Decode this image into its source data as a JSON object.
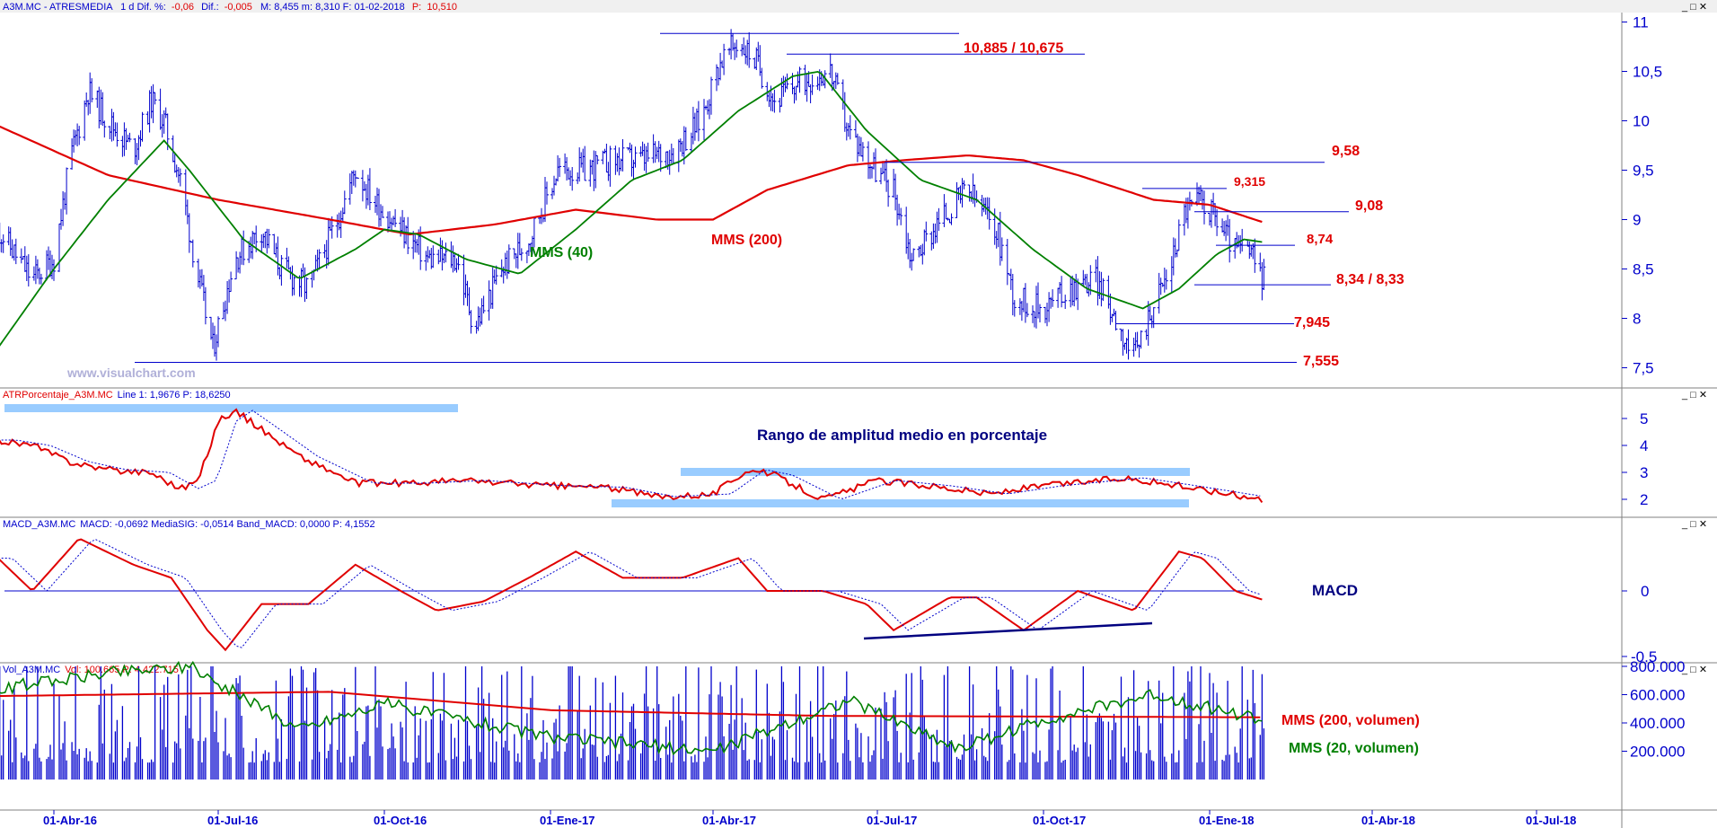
{
  "panes": {
    "price": {
      "header_symbol": "A3M.MC - ATRESMEDIA",
      "header_rest": "1 d  Dif. %:",
      "header_pct": "-0,06",
      "header_dif_label": "Dif.:",
      "header_dif": "-0,005",
      "header_stats": "M: 8,455  m: 8,310  F: 01-02-2018",
      "header_p_label": "P:",
      "header_p": "10,510",
      "watermark": "www.visualchart.com"
    },
    "atr": {
      "header_name": "ATRPorcentaje_A3M.MC",
      "header_vals": "Line 1: 1,9676  P: 18,6250",
      "note": "Rango de amplitud medio en porcentaje"
    },
    "macd": {
      "header_name": "MACD_A3M.MC",
      "header_vals": "MACD: -0,0692  MediaSIG: -0,0514  Band_MACD: 0,0000  P: 4,1552",
      "note": "MACD"
    },
    "volume": {
      "header_name": "Vol_A3M.MC",
      "header_vals": "Vol: 100.665  P: 4.422.715"
    }
  },
  "colors": {
    "price_bars": "#0000cc",
    "mms40": "#008000",
    "mms200": "#e00000",
    "atr": "#e00000",
    "macd_line": "#e00000",
    "signal": "#0000cc",
    "highlight": "#99ccff",
    "axis": "#0000cc",
    "accent_text": "#e00000",
    "dark_text": "#000080"
  },
  "chart_data": [
    {
      "type": "line",
      "pane": "price",
      "x_ticks": [
        "01-Abr-16",
        "01-Jul-16",
        "01-Oct-16",
        "01-Ene-17",
        "01-Abr-17",
        "01-Jul-17",
        "01-Oct-17",
        "01-Ene-18",
        "01-Abr-18",
        "01-Jul-18"
      ],
      "y_ticks": [
        "11",
        "10,5",
        "10",
        "9,5",
        "9",
        "8,5",
        "8",
        "7,5"
      ],
      "ylim": [
        7.3,
        11.1
      ],
      "x_start": "2016-03-01",
      "x_end": "2018-01-31",
      "close_series": [
        [
          "2016-03-01",
          8.9
        ],
        [
          "2016-03-20",
          8.4
        ],
        [
          "2016-04-01",
          8.6
        ],
        [
          "2016-04-10",
          9.6
        ],
        [
          "2016-04-20",
          10.3
        ],
        [
          "2016-05-01",
          10.0
        ],
        [
          "2016-05-15",
          9.7
        ],
        [
          "2016-05-25",
          10.2
        ],
        [
          "2016-06-01",
          10.0
        ],
        [
          "2016-06-10",
          9.4
        ],
        [
          "2016-06-20",
          8.4
        ],
        [
          "2016-06-28",
          7.7
        ],
        [
          "2016-07-10",
          8.6
        ],
        [
          "2016-07-25",
          8.9
        ],
        [
          "2016-08-05",
          8.5
        ],
        [
          "2016-08-20",
          8.3
        ],
        [
          "2016-09-05",
          9.0
        ],
        [
          "2016-09-15",
          9.5
        ],
        [
          "2016-09-25",
          9.2
        ],
        [
          "2016-10-10",
          8.9
        ],
        [
          "2016-10-25",
          8.6
        ],
        [
          "2016-11-10",
          8.6
        ],
        [
          "2016-11-20",
          7.9
        ],
        [
          "2016-12-05",
          8.5
        ],
        [
          "2016-12-20",
          8.8
        ],
        [
          "2017-01-05",
          9.5
        ],
        [
          "2017-01-20",
          9.5
        ],
        [
          "2017-02-05",
          9.6
        ],
        [
          "2017-02-20",
          9.6
        ],
        [
          "2017-03-10",
          9.7
        ],
        [
          "2017-03-25",
          10.0
        ],
        [
          "2017-04-05",
          10.6
        ],
        [
          "2017-04-15",
          10.8
        ],
        [
          "2017-04-25",
          10.6
        ],
        [
          "2017-05-05",
          10.2
        ],
        [
          "2017-05-20",
          10.4
        ],
        [
          "2017-06-05",
          10.5
        ],
        [
          "2017-06-15",
          9.9
        ],
        [
          "2017-06-30",
          9.5
        ],
        [
          "2017-07-10",
          9.3
        ],
        [
          "2017-07-20",
          8.6
        ],
        [
          "2017-08-05",
          9.0
        ],
        [
          "2017-08-20",
          9.3
        ],
        [
          "2017-09-05",
          8.9
        ],
        [
          "2017-09-15",
          8.2
        ],
        [
          "2017-09-30",
          8.1
        ],
        [
          "2017-10-15",
          8.3
        ],
        [
          "2017-10-30",
          8.4
        ],
        [
          "2017-11-10",
          8.0
        ],
        [
          "2017-11-20",
          7.6
        ],
        [
          "2017-11-30",
          8.1
        ],
        [
          "2017-12-10",
          8.5
        ],
        [
          "2017-12-18",
          9.1
        ],
        [
          "2017-12-28",
          9.2
        ],
        [
          "2018-01-05",
          9.0
        ],
        [
          "2018-01-15",
          8.7
        ],
        [
          "2018-01-22",
          8.7
        ],
        [
          "2018-01-31",
          8.4
        ]
      ],
      "series": [
        {
          "name": "MMS (40)",
          "values": [
            [
              "2016-03-01",
              7.7
            ],
            [
              "2016-04-01",
              8.5
            ],
            [
              "2016-05-01",
              9.2
            ],
            [
              "2016-06-01",
              9.8
            ],
            [
              "2016-06-15",
              9.5
            ],
            [
              "2016-07-15",
              8.8
            ],
            [
              "2016-08-15",
              8.4
            ],
            [
              "2016-09-15",
              8.7
            ],
            [
              "2016-10-01",
              8.9
            ],
            [
              "2016-10-20",
              8.85
            ],
            [
              "2016-11-15",
              8.6
            ],
            [
              "2016-12-15",
              8.45
            ],
            [
              "2017-01-15",
              8.9
            ],
            [
              "2017-02-15",
              9.4
            ],
            [
              "2017-03-15",
              9.6
            ],
            [
              "2017-04-15",
              10.1
            ],
            [
              "2017-05-15",
              10.45
            ],
            [
              "2017-05-30",
              10.5
            ],
            [
              "2017-06-25",
              9.9
            ],
            [
              "2017-07-25",
              9.4
            ],
            [
              "2017-08-25",
              9.2
            ],
            [
              "2017-09-25",
              8.7
            ],
            [
              "2017-10-25",
              8.3
            ],
            [
              "2017-11-25",
              8.1
            ],
            [
              "2017-12-15",
              8.3
            ],
            [
              "2018-01-05",
              8.65
            ],
            [
              "2018-01-20",
              8.8
            ],
            [
              "2018-01-31",
              8.77
            ]
          ]
        },
        {
          "name": "MMS (200)",
          "values": [
            [
              "2016-03-01",
              9.95
            ],
            [
              "2016-05-01",
              9.45
            ],
            [
              "2016-07-01",
              9.2
            ],
            [
              "2016-09-01",
              9.0
            ],
            [
              "2016-10-15",
              8.85
            ],
            [
              "2016-12-01",
              8.95
            ],
            [
              "2017-01-15",
              9.1
            ],
            [
              "2017-03-01",
              9.0
            ],
            [
              "2017-04-01",
              9.0
            ],
            [
              "2017-05-01",
              9.3
            ],
            [
              "2017-06-15",
              9.55
            ],
            [
              "2017-07-15",
              9.6
            ],
            [
              "2017-08-20",
              9.65
            ],
            [
              "2017-09-20",
              9.6
            ],
            [
              "2017-10-20",
              9.45
            ],
            [
              "2017-12-01",
              9.2
            ],
            [
              "2018-01-01",
              9.15
            ],
            [
              "2018-01-31",
              8.97
            ]
          ]
        }
      ],
      "levels": [
        {
          "label": "10,885 / 10,675",
          "value": 10.885,
          "value2": 10.675
        },
        {
          "label": "9,58",
          "value": 9.58
        },
        {
          "label": "9,315",
          "value": 9.315
        },
        {
          "label": "9,08",
          "value": 9.08
        },
        {
          "label": "8,74",
          "value": 8.74
        },
        {
          "label": "8,34 / 8,33",
          "value": 8.34
        },
        {
          "label": "7,945",
          "value": 7.945
        },
        {
          "label": "7,555",
          "value": 7.555
        }
      ],
      "annotations": [
        "MMS (40)",
        "MMS (200)"
      ]
    },
    {
      "type": "line",
      "pane": "atr",
      "y_ticks": [
        "5",
        "4",
        "3",
        "2"
      ],
      "ylim": [
        1.5,
        5.5
      ],
      "series": [
        {
          "name": "ATR %",
          "values": [
            [
              "2016-03-01",
              4.2
            ],
            [
              "2016-03-20",
              4.0
            ],
            [
              "2016-04-10",
              3.4
            ],
            [
              "2016-05-01",
              3.1
            ],
            [
              "2016-05-25",
              3.0
            ],
            [
              "2016-06-10",
              2.4
            ],
            [
              "2016-06-20",
              2.7
            ],
            [
              "2016-07-01",
              4.9
            ],
            [
              "2016-07-10",
              5.3
            ],
            [
              "2016-07-25",
              4.6
            ],
            [
              "2016-08-15",
              3.6
            ],
            [
              "2016-09-15",
              2.6
            ],
            [
              "2016-10-15",
              2.6
            ],
            [
              "2016-11-15",
              2.7
            ],
            [
              "2017-01-01",
              2.5
            ],
            [
              "2017-02-01",
              2.45
            ],
            [
              "2017-03-01",
              2.1
            ],
            [
              "2017-04-01",
              2.2
            ],
            [
              "2017-04-20",
              3.1
            ],
            [
              "2017-05-05",
              2.9
            ],
            [
              "2017-06-01",
              2.0
            ],
            [
              "2017-07-01",
              2.7
            ],
            [
              "2017-08-01",
              2.5
            ],
            [
              "2017-09-01",
              2.2
            ],
            [
              "2017-10-01",
              2.5
            ],
            [
              "2017-11-15",
              2.8
            ],
            [
              "2017-12-15",
              2.5
            ],
            [
              "2018-01-31",
              2.0
            ]
          ]
        }
      ],
      "annotations": [
        "Rango de amplitud medio en porcentaje"
      ]
    },
    {
      "type": "line",
      "pane": "macd",
      "y_ticks": [
        "0",
        "-0.5"
      ],
      "ylim": [
        -0.55,
        0.45
      ],
      "series": [
        {
          "name": "MACD",
          "values": [
            [
              "2016-03-01",
              0.25
            ],
            [
              "2016-03-20",
              0.0
            ],
            [
              "2016-04-15",
              0.4
            ],
            [
              "2016-05-15",
              0.2
            ],
            [
              "2016-06-05",
              0.1
            ],
            [
              "2016-06-25",
              -0.3
            ],
            [
              "2016-07-05",
              -0.45
            ],
            [
              "2016-07-25",
              -0.1
            ],
            [
              "2016-08-20",
              -0.1
            ],
            [
              "2016-09-15",
              0.2
            ],
            [
              "2016-10-10",
              0.0
            ],
            [
              "2016-10-30",
              -0.15
            ],
            [
              "2016-11-25",
              -0.08
            ],
            [
              "2016-12-20",
              0.1
            ],
            [
              "2017-01-15",
              0.3
            ],
            [
              "2017-02-10",
              0.1
            ],
            [
              "2017-03-15",
              0.1
            ],
            [
              "2017-04-15",
              0.25
            ],
            [
              "2017-05-01",
              0.0
            ],
            [
              "2017-06-01",
              0.0
            ],
            [
              "2017-06-25",
              -0.1
            ],
            [
              "2017-07-10",
              -0.3
            ],
            [
              "2017-08-10",
              -0.05
            ],
            [
              "2017-08-25",
              -0.05
            ],
            [
              "2017-09-20",
              -0.3
            ],
            [
              "2017-10-20",
              0.0
            ],
            [
              "2017-11-20",
              -0.15
            ],
            [
              "2017-12-15",
              0.3
            ],
            [
              "2017-12-28",
              0.25
            ],
            [
              "2018-01-15",
              0.0
            ],
            [
              "2018-01-31",
              -0.07
            ]
          ]
        }
      ],
      "annotations": [
        "MACD"
      ]
    },
    {
      "type": "bar",
      "pane": "volume",
      "y_ticks": [
        "800.000",
        "600.000",
        "400.000",
        "200.000"
      ],
      "ylim": [
        0,
        820000
      ],
      "series": [
        {
          "name": "MMS (200, volumen)",
          "values": [
            [
              "2016-03-01",
              590000
            ],
            [
              "2016-09-01",
              620000
            ],
            [
              "2017-01-01",
              490000
            ],
            [
              "2017-06-01",
              450000
            ],
            [
              "2018-01-31",
              440000
            ]
          ]
        },
        {
          "name": "MMS (20, volumen)",
          "values": [
            [
              "2016-03-01",
              640000
            ],
            [
              "2016-05-01",
              760000
            ],
            [
              "2016-06-15",
              800000
            ],
            [
              "2016-08-15",
              360000
            ],
            [
              "2016-10-01",
              540000
            ],
            [
              "2017-01-01",
              300000
            ],
            [
              "2017-04-01",
              200000
            ],
            [
              "2017-06-15",
              560000
            ],
            [
              "2017-08-15",
              220000
            ],
            [
              "2017-10-01",
              420000
            ],
            [
              "2017-12-01",
              600000
            ],
            [
              "2018-01-31",
              420000
            ]
          ]
        }
      ],
      "annotations": [
        "MMS (200, volumen)",
        "MMS (20, volumen)"
      ]
    }
  ]
}
